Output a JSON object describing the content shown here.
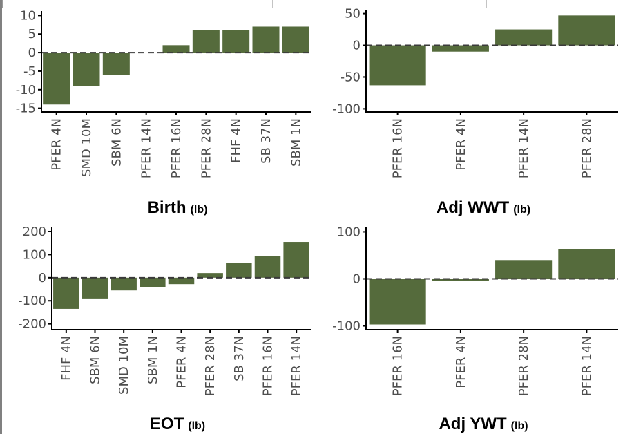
{
  "style": {
    "bar_color": "#556b3c",
    "zero_line_color": "#3a3a3a",
    "axis_color": "#000000"
  },
  "chart_data": [
    {
      "type": "bar",
      "id": "birth",
      "title": "Birth",
      "unit": "(lb)",
      "categories": [
        "PFER 4N",
        "SMD 10M",
        "SBM 6N",
        "PFER 14N",
        "PFER 16N",
        "PFER 28N",
        "FHF 4N",
        "SB 37N",
        "SBM 1N"
      ],
      "values": [
        -14,
        -9,
        -6,
        0,
        2,
        6,
        6,
        7,
        7
      ],
      "yticks": [
        10,
        5,
        0,
        -5,
        -10,
        -15
      ],
      "ylim": [
        -16,
        11
      ],
      "zero_line": "dashed"
    },
    {
      "type": "bar",
      "id": "adj-wwt",
      "title": "Adj WWT",
      "unit": "(lb)",
      "categories": [
        "PFER 16N",
        "PFER 4N",
        "PFER 14N",
        "PFER 28N"
      ],
      "values": [
        -63,
        -10,
        25,
        47
      ],
      "yticks": [
        50,
        0,
        -50,
        -100
      ],
      "ylim": [
        -105,
        55
      ],
      "zero_line": "dashed"
    },
    {
      "type": "bar",
      "id": "eot",
      "title": "EOT",
      "unit": "(lb)",
      "categories": [
        "FHF 4N",
        "SBM 6N",
        "SMD 10M",
        "SBM 1N",
        "PFER 4N",
        "PFER 28N",
        "SB 37N",
        "PFER 16N",
        "PFER 14N"
      ],
      "values": [
        -135,
        -90,
        -55,
        -40,
        -28,
        20,
        65,
        95,
        155
      ],
      "yticks": [
        200,
        100,
        0,
        -100,
        -200
      ],
      "ylim": [
        -225,
        215
      ],
      "zero_line": "dashed"
    },
    {
      "type": "bar",
      "id": "adj-ywt",
      "title": "Adj YWT",
      "unit": "(lb)",
      "categories": [
        "PFER 16N",
        "PFER 4N",
        "PFER 28N",
        "PFER 14N"
      ],
      "values": [
        -97,
        -4,
        40,
        63
      ],
      "yticks": [
        100,
        0,
        -100
      ],
      "ylim": [
        -108,
        108
      ],
      "zero_line": "dashed"
    }
  ]
}
